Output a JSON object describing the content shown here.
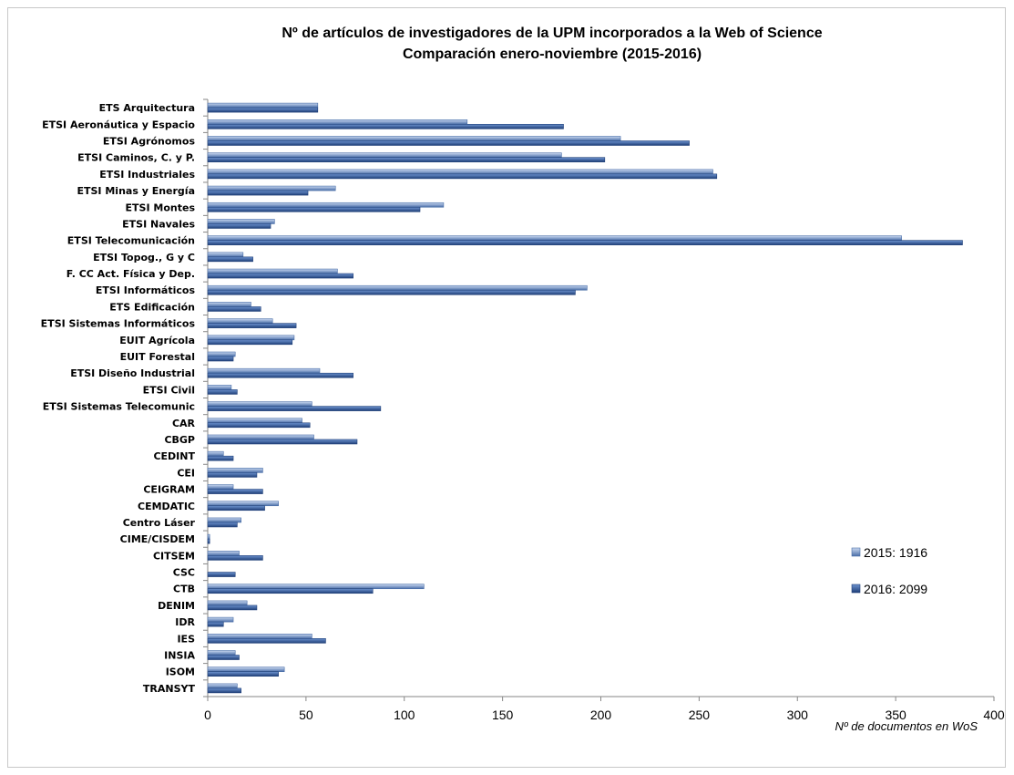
{
  "chart_data": {
    "type": "bar",
    "orientation": "horizontal",
    "title": "Nº de artículos de investigadores de la UPM incorporados a la Web of Science",
    "subtitle": "Comparación enero-noviembre (2015-2016)",
    "xlabel": "Nº de documentos en WoS",
    "ylabel": "",
    "xlim": [
      0,
      400
    ],
    "xticks": [
      0,
      50,
      100,
      150,
      200,
      250,
      300,
      350,
      400
    ],
    "grid": false,
    "legend_position": "right",
    "colors": {
      "s2015": "#8eaadb",
      "s2016": "#3f6ab0",
      "s2015_dark": "#4a6ea8",
      "s2016_dark": "#1f3f78"
    },
    "categories": [
      "ETS Arquitectura",
      "ETSI Aeronáutica y Espacio",
      "ETSI Agrónomos",
      "ETSI Caminos, C. y P.",
      "ETSI Industriales",
      "ETSI Minas y Energía",
      "ETSI Montes",
      "ETSI Navales",
      "ETSI Telecomunicación",
      "ETSI Topog., G y C",
      "F. CC Act. Física y Dep.",
      "ETSI Informáticos",
      "ETS Edificación",
      "ETSI Sistemas Informáticos",
      "EUIT Agrícola",
      "EUIT Forestal",
      "ETSI Diseño Industrial",
      "ETSI Civil",
      "ETSI Sistemas Telecomunic",
      "CAR",
      "CBGP",
      "CEDINT",
      "CEI",
      "CEIGRAM",
      "CEMDATIC",
      "Centro Láser",
      "CIME/CISDEM",
      "CITSEM",
      "CSC",
      "CTB",
      "DENIM",
      "IDR",
      "IES",
      "INSIA",
      "ISOM",
      "TRANSYT"
    ],
    "series": [
      {
        "name": "2015: 1916",
        "values": [
          56,
          132,
          210,
          180,
          257,
          65,
          120,
          34,
          353,
          18,
          66,
          193,
          22,
          33,
          44,
          14,
          57,
          12,
          53,
          48,
          54,
          8,
          28,
          13,
          36,
          17,
          1,
          16,
          0,
          110,
          20,
          13,
          53,
          14,
          39,
          15
        ]
      },
      {
        "name": "2016: 2099",
        "values": [
          56,
          181,
          245,
          202,
          259,
          51,
          108,
          32,
          384,
          23,
          74,
          187,
          27,
          45,
          43,
          13,
          74,
          15,
          88,
          52,
          76,
          13,
          25,
          28,
          29,
          15,
          1,
          28,
          14,
          84,
          25,
          8,
          60,
          16,
          36,
          17
        ]
      }
    ]
  }
}
